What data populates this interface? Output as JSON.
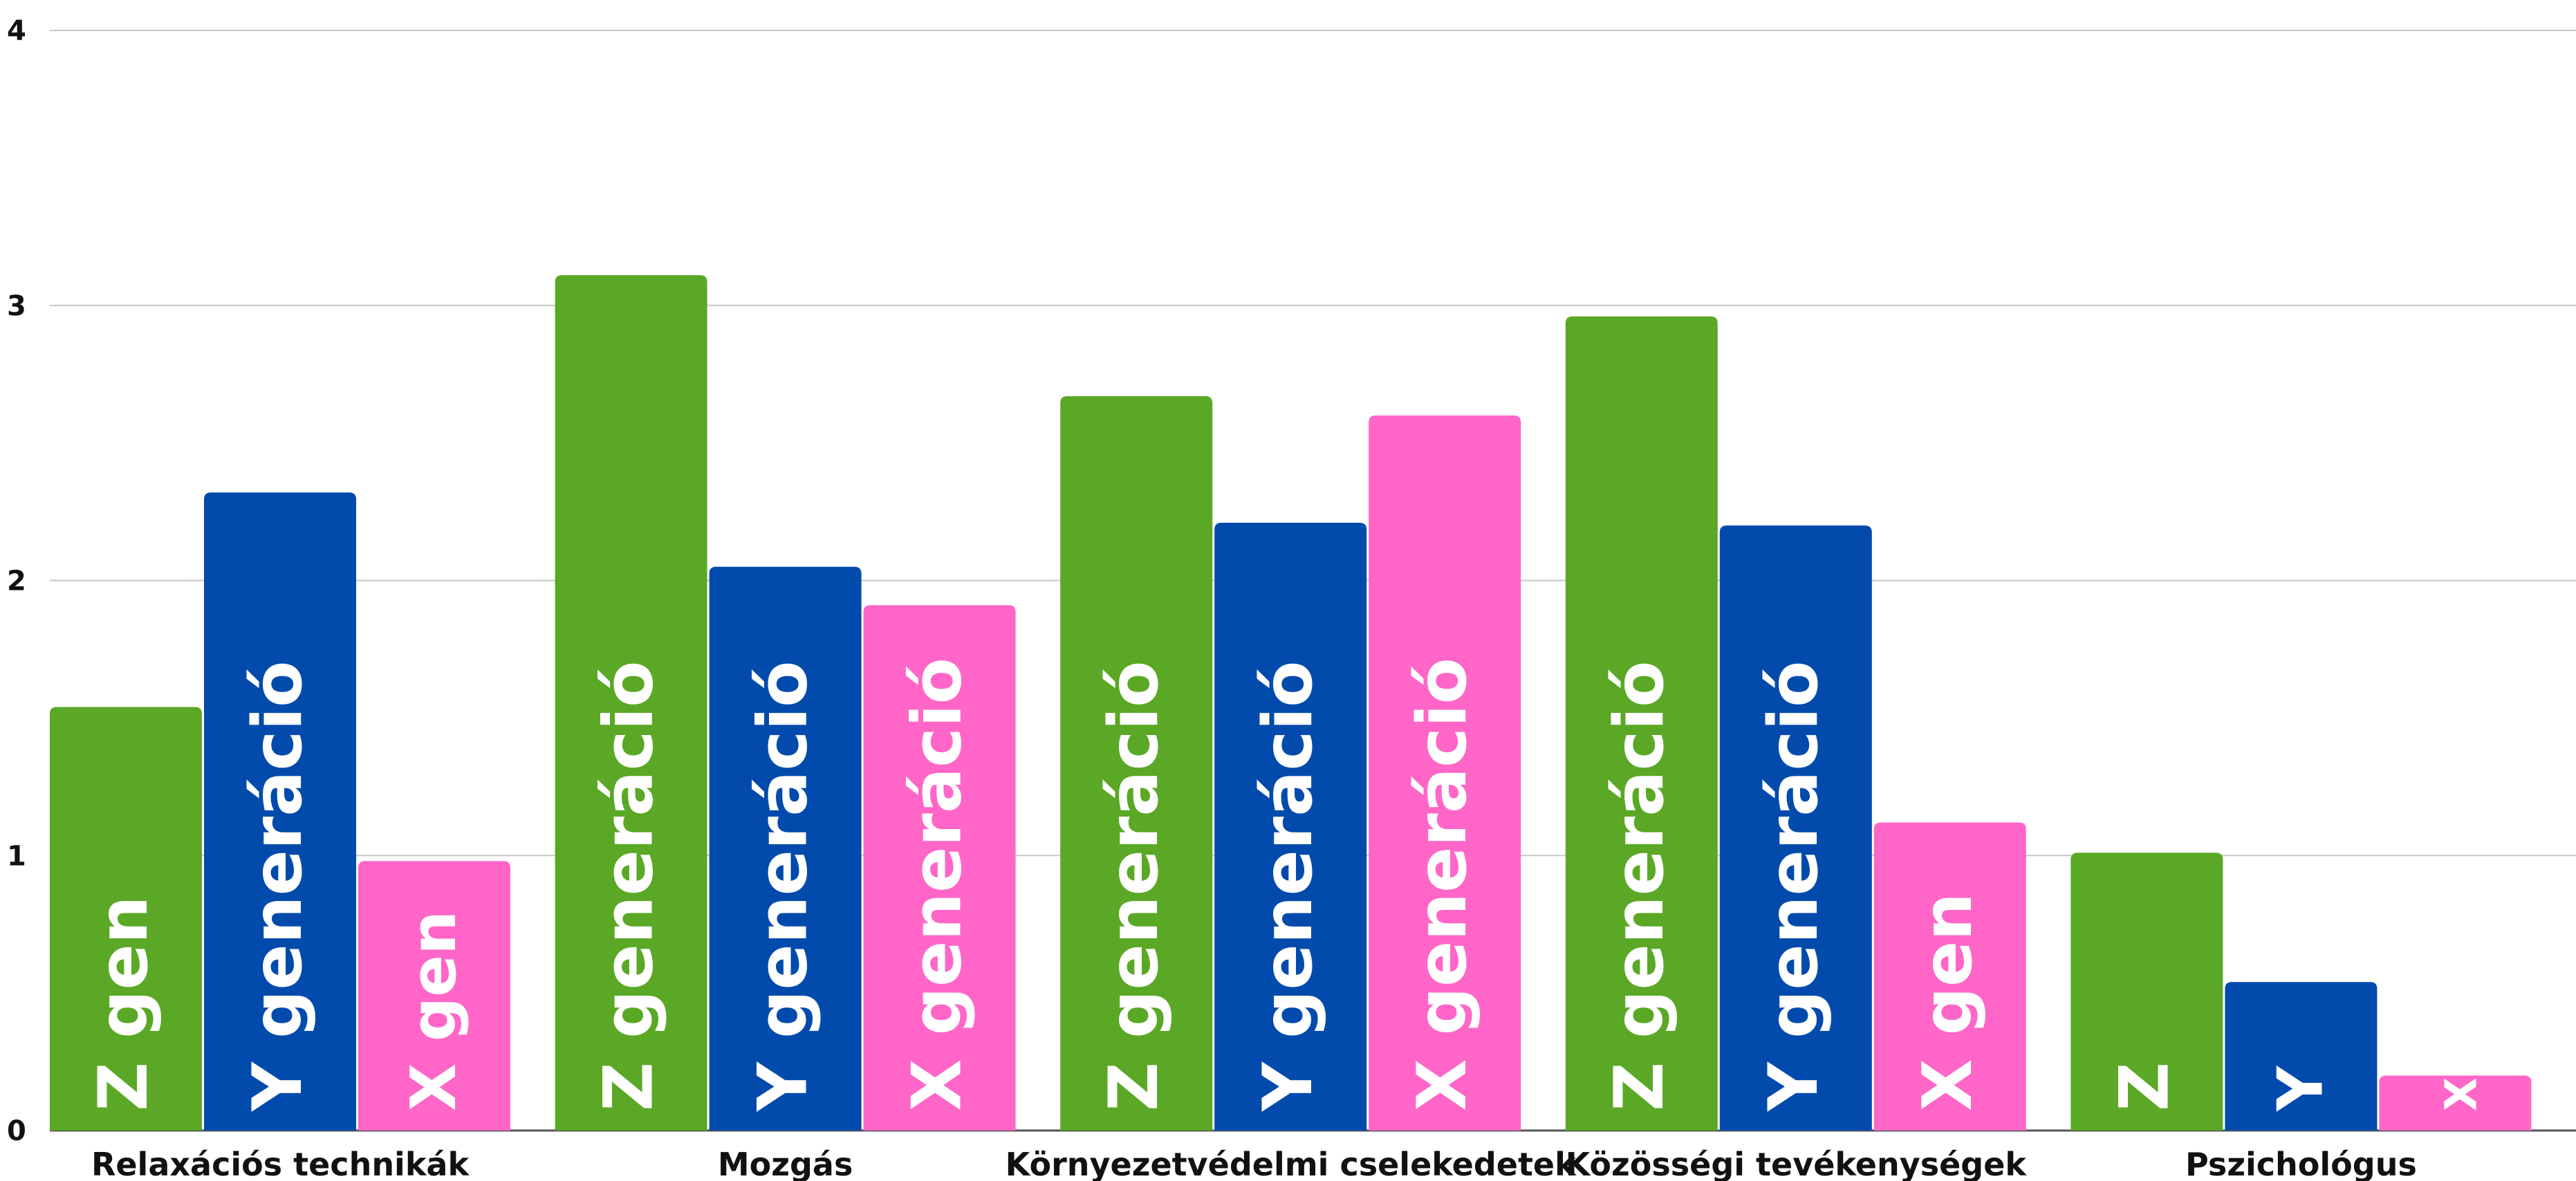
{
  "chart_data": {
    "type": "bar",
    "categories": [
      "Relaxációs technikák",
      "Mozgás",
      "Környezetvédelmi cselekedetek",
      "Közösségi tevékenységek",
      "Pszichológus"
    ],
    "series": [
      {
        "color": "#5aa825",
        "values": [
          1.54,
          3.11,
          2.67,
          2.96,
          1.01
        ],
        "labels": [
          "Z gen",
          "Z generáció",
          "Z generáció",
          "Z generáció",
          "Z"
        ]
      },
      {
        "color": "#024bad",
        "values": [
          2.32,
          2.05,
          2.21,
          2.2,
          0.54
        ],
        "labels": [
          "Y generáció",
          "Y generáció",
          "Y generáció",
          "Y generáció",
          "Y"
        ]
      },
      {
        "color": "#ff66c7",
        "values": [
          0.98,
          1.91,
          2.6,
          1.12,
          0.2
        ],
        "labels": [
          "X gen",
          "X generáció",
          "X generáció",
          "X gen",
          "X"
        ]
      }
    ],
    "ylim": [
      0,
      4
    ],
    "yticks": [
      "0",
      "1",
      "2",
      "3",
      "4"
    ],
    "grid": true,
    "legend": "none"
  }
}
